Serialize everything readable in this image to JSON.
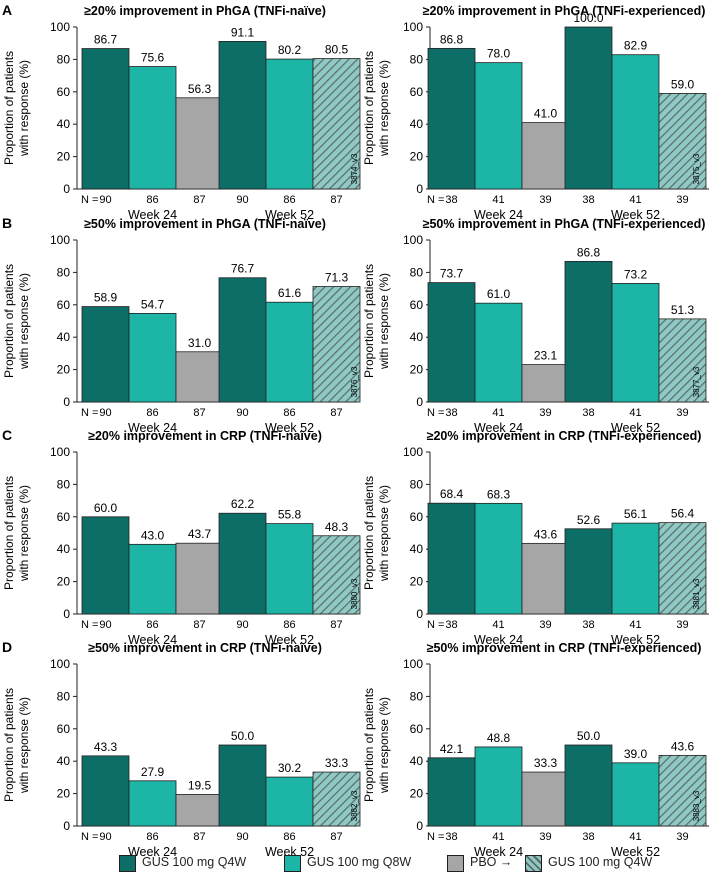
{
  "colors": {
    "gus_q4w": "#0d6e67",
    "gus_q8w": "#1cb5a6",
    "pbo": "#a6a6a6",
    "pbo_hatch_bg": "#8fc9c4",
    "pbo_hatch_line": "#5a6b6a"
  },
  "legend": {
    "item1": "GUS 100 mg Q4W",
    "item2": "GUS 100 mg Q8W",
    "item3_prefix": "PBO",
    "item3_arrow": "→",
    "item3_suffix": "GUS 100 mg Q4W"
  },
  "chart_data": [
    {
      "panel_letter": "A",
      "type": "bar",
      "title": "≥20% improvement in PhGA (TNFi-naïve)",
      "ylabel_line1": "Proportion of patients",
      "ylabel_line2": "with response (%)",
      "ylim": [
        0,
        100
      ],
      "yticks": [
        "0",
        "20",
        "40",
        "60",
        "80",
        "100"
      ],
      "n_label": "N =",
      "code": "3874_v3",
      "categories": [
        "Week 24",
        "Week 52"
      ],
      "series": [
        {
          "name": "GUS 100 mg Q4W",
          "values": [
            86.7,
            91.1
          ],
          "labels": [
            "86.7",
            "91.1"
          ],
          "n": [
            "90",
            "90"
          ]
        },
        {
          "name": "GUS 100 mg Q8W",
          "values": [
            75.6,
            80.2
          ],
          "labels": [
            "75.6",
            "80.2"
          ],
          "n": [
            "86",
            "86"
          ]
        },
        {
          "name": "PBO → GUS 100 mg Q4W",
          "values": [
            56.3,
            80.5
          ],
          "labels": [
            "56.3",
            "80.5"
          ],
          "n": [
            "87",
            "87"
          ]
        }
      ]
    },
    {
      "panel_letter": "",
      "type": "bar",
      "title": "≥20% improvement in PhGA (TNFi-experienced)",
      "ylabel_line1": "Proportion of patients",
      "ylabel_line2": "with response (%)",
      "ylim": [
        0,
        100
      ],
      "yticks": [
        "0",
        "20",
        "40",
        "60",
        "80",
        "100"
      ],
      "n_label": "N =",
      "code": "3875_v3",
      "categories": [
        "Week 24",
        "Week 52"
      ],
      "series": [
        {
          "name": "GUS 100 mg Q4W",
          "values": [
            86.8,
            100.0
          ],
          "labels": [
            "86.8",
            "100.0"
          ],
          "n": [
            "38",
            "38"
          ]
        },
        {
          "name": "GUS 100 mg Q8W",
          "values": [
            78.0,
            82.9
          ],
          "labels": [
            "78.0",
            "82.9"
          ],
          "n": [
            "41",
            "41"
          ]
        },
        {
          "name": "PBO → GUS 100 mg Q4W",
          "values": [
            41.0,
            59.0
          ],
          "labels": [
            "41.0",
            "59.0"
          ],
          "n": [
            "39",
            "39"
          ]
        }
      ]
    },
    {
      "panel_letter": "B",
      "type": "bar",
      "title": "≥50% improvement in PhGA (TNFi-naïve)",
      "ylabel_line1": "Proportion of patients",
      "ylabel_line2": "with response (%)",
      "ylim": [
        0,
        100
      ],
      "yticks": [
        "0",
        "20",
        "40",
        "60",
        "80",
        "100"
      ],
      "n_label": "N =",
      "code": "3876_v3",
      "categories": [
        "Week 24",
        "Week 52"
      ],
      "series": [
        {
          "name": "GUS 100 mg Q4W",
          "values": [
            58.9,
            76.7
          ],
          "labels": [
            "58.9",
            "76.7"
          ],
          "n": [
            "90",
            "90"
          ]
        },
        {
          "name": "GUS 100 mg Q8W",
          "values": [
            54.7,
            61.6
          ],
          "labels": [
            "54.7",
            "61.6"
          ],
          "n": [
            "86",
            "86"
          ]
        },
        {
          "name": "PBO → GUS 100 mg Q4W",
          "values": [
            31.0,
            71.3
          ],
          "labels": [
            "31.0",
            "71.3"
          ],
          "n": [
            "87",
            "87"
          ]
        }
      ]
    },
    {
      "panel_letter": "",
      "type": "bar",
      "title": "≥50% improvement in PhGA (TNFi-experienced)",
      "ylabel_line1": "Proportion of patients",
      "ylabel_line2": "with response (%)",
      "ylim": [
        0,
        100
      ],
      "yticks": [
        "0",
        "20",
        "40",
        "60",
        "80",
        "100"
      ],
      "n_label": "N =",
      "code": "3877_v3",
      "categories": [
        "Week 24",
        "Week 52"
      ],
      "series": [
        {
          "name": "GUS 100 mg Q4W",
          "values": [
            73.7,
            86.8
          ],
          "labels": [
            "73.7",
            "86.8"
          ],
          "n": [
            "38",
            "38"
          ]
        },
        {
          "name": "GUS 100 mg Q8W",
          "values": [
            61.0,
            73.2
          ],
          "labels": [
            "61.0",
            "73.2"
          ],
          "n": [
            "41",
            "41"
          ]
        },
        {
          "name": "PBO → GUS 100 mg Q4W",
          "values": [
            23.1,
            51.3
          ],
          "labels": [
            "23.1",
            "51.3"
          ],
          "n": [
            "39",
            "39"
          ]
        }
      ]
    },
    {
      "panel_letter": "C",
      "type": "bar",
      "title": "≥20% improvement in CRP (TNFi-naïve)",
      "ylabel_line1": "Proportion of patients",
      "ylabel_line2": "with response (%)",
      "ylim": [
        0,
        100
      ],
      "yticks": [
        "0",
        "20",
        "40",
        "60",
        "80",
        "100"
      ],
      "n_label": "N =",
      "code": "3880_v3",
      "categories": [
        "Week 24",
        "Week 52"
      ],
      "series": [
        {
          "name": "GUS 100 mg Q4W",
          "values": [
            60.0,
            62.2
          ],
          "labels": [
            "60.0",
            "62.2"
          ],
          "n": [
            "90",
            "90"
          ]
        },
        {
          "name": "GUS 100 mg Q8W",
          "values": [
            43.0,
            55.8
          ],
          "labels": [
            "43.0",
            "55.8"
          ],
          "n": [
            "86",
            "86"
          ]
        },
        {
          "name": "PBO → GUS 100 mg Q4W",
          "values": [
            43.7,
            48.3
          ],
          "labels": [
            "43.7",
            "48.3"
          ],
          "n": [
            "87",
            "87"
          ]
        }
      ]
    },
    {
      "panel_letter": "",
      "type": "bar",
      "title": "≥20% improvement in CRP (TNFi-experienced)",
      "ylabel_line1": "Proportion of patients",
      "ylabel_line2": "with response (%)",
      "ylim": [
        0,
        100
      ],
      "yticks": [
        "0",
        "20",
        "40",
        "60",
        "80",
        "100"
      ],
      "n_label": "N =",
      "code": "3881_v3",
      "categories": [
        "Week 24",
        "Week 52"
      ],
      "series": [
        {
          "name": "GUS 100 mg Q4W",
          "values": [
            68.4,
            52.6
          ],
          "labels": [
            "68.4",
            "52.6"
          ],
          "n": [
            "38",
            "38"
          ]
        },
        {
          "name": "GUS 100 mg Q8W",
          "values": [
            68.3,
            56.1
          ],
          "labels": [
            "68.3",
            "56.1"
          ],
          "n": [
            "41",
            "41"
          ]
        },
        {
          "name": "PBO → GUS 100 mg Q4W",
          "values": [
            43.6,
            56.4
          ],
          "labels": [
            "43.6",
            "56.4"
          ],
          "n": [
            "39",
            "39"
          ]
        }
      ]
    },
    {
      "panel_letter": "D",
      "type": "bar",
      "title": "≥50% improvement in CRP (TNFi-naïve)",
      "ylabel_line1": "Proportion of patients",
      "ylabel_line2": "with response (%)",
      "ylim": [
        0,
        100
      ],
      "yticks": [
        "0",
        "20",
        "40",
        "60",
        "80",
        "100"
      ],
      "n_label": "N =",
      "code": "3882_v3",
      "categories": [
        "Week 24",
        "Week 52"
      ],
      "series": [
        {
          "name": "GUS 100 mg Q4W",
          "values": [
            43.3,
            50.0
          ],
          "labels": [
            "43.3",
            "50.0"
          ],
          "n": [
            "90",
            "90"
          ]
        },
        {
          "name": "GUS 100 mg Q8W",
          "values": [
            27.9,
            30.2
          ],
          "labels": [
            "27.9",
            "30.2"
          ],
          "n": [
            "86",
            "86"
          ]
        },
        {
          "name": "PBO → GUS 100 mg Q4W",
          "values": [
            19.5,
            33.3
          ],
          "labels": [
            "19.5",
            "33.3"
          ],
          "n": [
            "87",
            "87"
          ]
        }
      ]
    },
    {
      "panel_letter": "",
      "type": "bar",
      "title": "≥50% improvement in CRP (TNFi-experienced)",
      "ylabel_line1": "Proportion of patients",
      "ylabel_line2": "with response (%)",
      "ylim": [
        0,
        100
      ],
      "yticks": [
        "0",
        "20",
        "40",
        "60",
        "80",
        "100"
      ],
      "n_label": "N =",
      "code": "3883_v3",
      "categories": [
        "Week 24",
        "Week 52"
      ],
      "series": [
        {
          "name": "GUS 100 mg Q4W",
          "values": [
            42.1,
            50.0
          ],
          "labels": [
            "42.1",
            "50.0"
          ],
          "n": [
            "38",
            "38"
          ]
        },
        {
          "name": "GUS 100 mg Q8W",
          "values": [
            48.8,
            39.0
          ],
          "labels": [
            "48.8",
            "39.0"
          ],
          "n": [
            "41",
            "41"
          ]
        },
        {
          "name": "PBO → GUS 100 mg Q4W",
          "values": [
            33.3,
            43.6
          ],
          "labels": [
            "33.3",
            "43.6"
          ],
          "n": [
            "39",
            "39"
          ]
        }
      ]
    }
  ]
}
